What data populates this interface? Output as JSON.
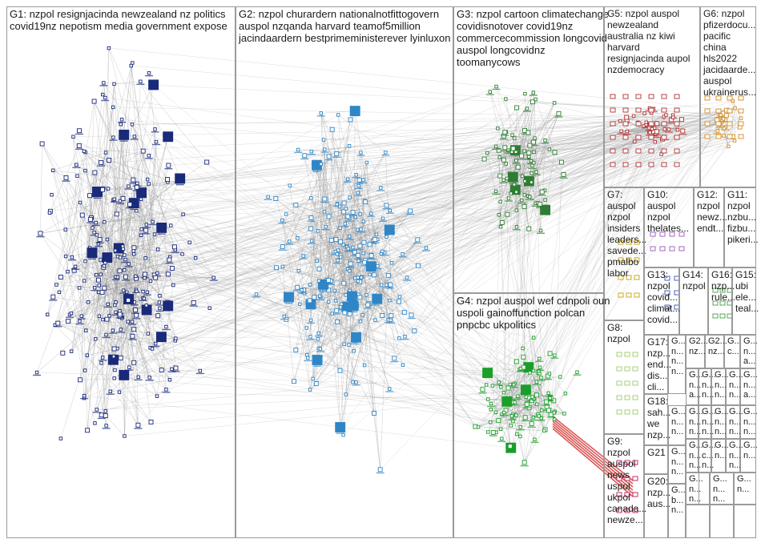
{
  "groups": [
    {
      "id": "G1",
      "lines": [
        "G1: nzpol resignjacinda newzealand nz politics",
        "covid19nz nepotism media government expose"
      ],
      "color": "#1a2a7a"
    },
    {
      "id": "G2",
      "lines": [
        "G2: nzpol churardern nationalnotfittogovern",
        "auspol nzqanda harvard teamof5million",
        "jacindaardern bestprimeministerever lyinluxon"
      ],
      "color": "#2f86c7"
    },
    {
      "id": "G3",
      "lines": [
        "G3: nzpol cartoon climatechange",
        "covidisnotover covid19nz",
        "commercecommission longcovid",
        "auspol longcovidnz",
        "toomanycows"
      ],
      "color": "#2e7d32"
    },
    {
      "id": "G4",
      "lines": [
        "G4: nzpol auspol wef cdnpoli oun",
        "uspoli gainoffunction polcan",
        "pnpcbc ukpolitics"
      ],
      "color": "#1b9e2a"
    },
    {
      "id": "G5",
      "lines": [
        "G5: nzpol auspol",
        "newzealand",
        "australia nz kiwi",
        "harvard",
        "resignjacinda aupol",
        "nzdemocracy"
      ],
      "color": "#b03030"
    },
    {
      "id": "G6",
      "lines": [
        "G6: nzpol",
        "pfizerdocu...",
        "pacific",
        "china",
        "hls2022",
        "jacidaarde...",
        "auspol",
        "ukrainerus..."
      ],
      "color": "#d48a1e"
    },
    {
      "id": "G7",
      "lines": [
        "G7:",
        "auspol",
        "nzpol",
        "insiders",
        "leaders...",
        "savede...",
        "pmalbo",
        "labor"
      ],
      "color": "#c8a000"
    },
    {
      "id": "G10",
      "lines": [
        "G10:",
        "auspol",
        "nzpol",
        "thelates..."
      ],
      "color": "#9b59b6"
    },
    {
      "id": "G12",
      "lines": [
        "G12:",
        "nzpol",
        "newz...",
        "endt..."
      ],
      "color": "#6a1b9a"
    },
    {
      "id": "G11",
      "lines": [
        "G11:",
        "nzpol",
        "nzbu...",
        "fizbu...",
        "pikeri..."
      ],
      "color": "#8e24aa"
    },
    {
      "id": "G13",
      "lines": [
        "G13:",
        "nzpol",
        "covid...",
        "climat...",
        "covid..."
      ],
      "color": "#3f51b5"
    },
    {
      "id": "G14",
      "lines": [
        "G14:",
        "nzpol"
      ],
      "color": "#5c6bc0"
    },
    {
      "id": "G16",
      "lines": [
        "G16:",
        "nzp...",
        "rule..."
      ],
      "color": "#43a047"
    },
    {
      "id": "G15",
      "lines": [
        "G15:",
        "ubi",
        "ele...",
        "teal..."
      ],
      "color": "#00897b"
    },
    {
      "id": "G8",
      "lines": [
        "G8:",
        "nzpol"
      ],
      "color": "#9ccc65"
    },
    {
      "id": "G17",
      "lines": [
        "G17:",
        "nzp...",
        "end...",
        "dis...",
        "cli..."
      ],
      "color": "#558b2f"
    },
    {
      "id": "G18",
      "lines": [
        "G18:",
        "sah...",
        "we",
        "nzp..."
      ],
      "color": "#827717"
    },
    {
      "id": "G9",
      "lines": [
        "G9:",
        "nzpol",
        "auspol",
        "news",
        "uspol",
        "ukpol",
        "canada...",
        "newze..."
      ],
      "color": "#c2185b"
    },
    {
      "id": "G21",
      "lines": [
        "G21"
      ],
      "color": "#7cb342"
    },
    {
      "id": "G20",
      "lines": [
        "G20:",
        "nzp...",
        "aus..."
      ],
      "color": "#5e35b1"
    },
    {
      "id": "Gs1",
      "lines": [
        "G...",
        "n...",
        "n...",
        "n..."
      ],
      "color": "#888"
    },
    {
      "id": "Gs2",
      "lines": [
        "G2...",
        "nz..."
      ],
      "color": "#888"
    },
    {
      "id": "Gs3",
      "lines": [
        "G2...",
        "nz..."
      ],
      "color": "#888"
    },
    {
      "id": "Gs4",
      "lines": [
        "G...",
        "c..."
      ],
      "color": "#888"
    },
    {
      "id": "Gs5",
      "lines": [
        "G...",
        "n...",
        "a..."
      ],
      "color": "#888"
    },
    {
      "id": "Gs6",
      "lines": [
        "G...",
        "n...",
        "a..."
      ],
      "color": "#888"
    },
    {
      "id": "Gs7",
      "lines": [
        "G...",
        "n...",
        "n..."
      ],
      "color": "#888"
    },
    {
      "id": "Gs8",
      "lines": [
        "G...",
        "n...",
        "n..."
      ],
      "color": "#888"
    },
    {
      "id": "Gs9",
      "lines": [
        "G...",
        "n...",
        "n..."
      ],
      "color": "#888"
    },
    {
      "id": "Gs10",
      "lines": [
        "G...",
        "n...",
        "a..."
      ],
      "color": "#888"
    },
    {
      "id": "Gs11",
      "lines": [
        "G...",
        "n...",
        "n..."
      ],
      "color": "#888"
    },
    {
      "id": "Gs12",
      "lines": [
        "G...",
        "n...",
        "n..."
      ],
      "color": "#888"
    },
    {
      "id": "Gs13",
      "lines": [
        "G...",
        "n...",
        "n..."
      ],
      "color": "#888"
    },
    {
      "id": "Gs14",
      "lines": [
        "G...",
        "n...",
        "n..."
      ],
      "color": "#888"
    },
    {
      "id": "Gs15",
      "lines": [
        "G...",
        "n...",
        "n..."
      ],
      "color": "#888"
    },
    {
      "id": "Gs16",
      "lines": [
        "G...",
        "n...",
        "n..."
      ],
      "color": "#888"
    },
    {
      "id": "Gs17",
      "lines": [
        "G...",
        "n...",
        "n..."
      ],
      "color": "#888"
    },
    {
      "id": "Gs18",
      "lines": [
        "G...",
        "n...",
        "n..."
      ],
      "color": "#888"
    },
    {
      "id": "Gs19",
      "lines": [
        "G...",
        "c...",
        "n..."
      ],
      "color": "#888"
    },
    {
      "id": "Gs20",
      "lines": [
        "G...",
        "n..."
      ],
      "color": "#888"
    },
    {
      "id": "Gs21",
      "lines": [
        "G...",
        "b...",
        "n..."
      ],
      "color": "#888"
    },
    {
      "id": "Gs22",
      "lines": [
        "G...",
        "n...",
        "n..."
      ],
      "color": "#888"
    },
    {
      "id": "Gs23",
      "lines": [
        "G...",
        "n..."
      ],
      "color": "#888"
    },
    {
      "id": "Gs24",
      "lines": [
        "G...",
        "n...",
        "n..."
      ],
      "color": "#888"
    },
    {
      "id": "Gs25",
      "lines": [
        "G...",
        "n...",
        "n..."
      ],
      "color": "#888"
    },
    {
      "id": "Gs26",
      "lines": [
        "G...",
        "n..."
      ],
      "color": "#888"
    }
  ],
  "colors": {
    "edge": "#8f8f8f",
    "edge_red": "#d32f2f",
    "border": "#9a9a9a",
    "node_fill": "#ffffff"
  }
}
